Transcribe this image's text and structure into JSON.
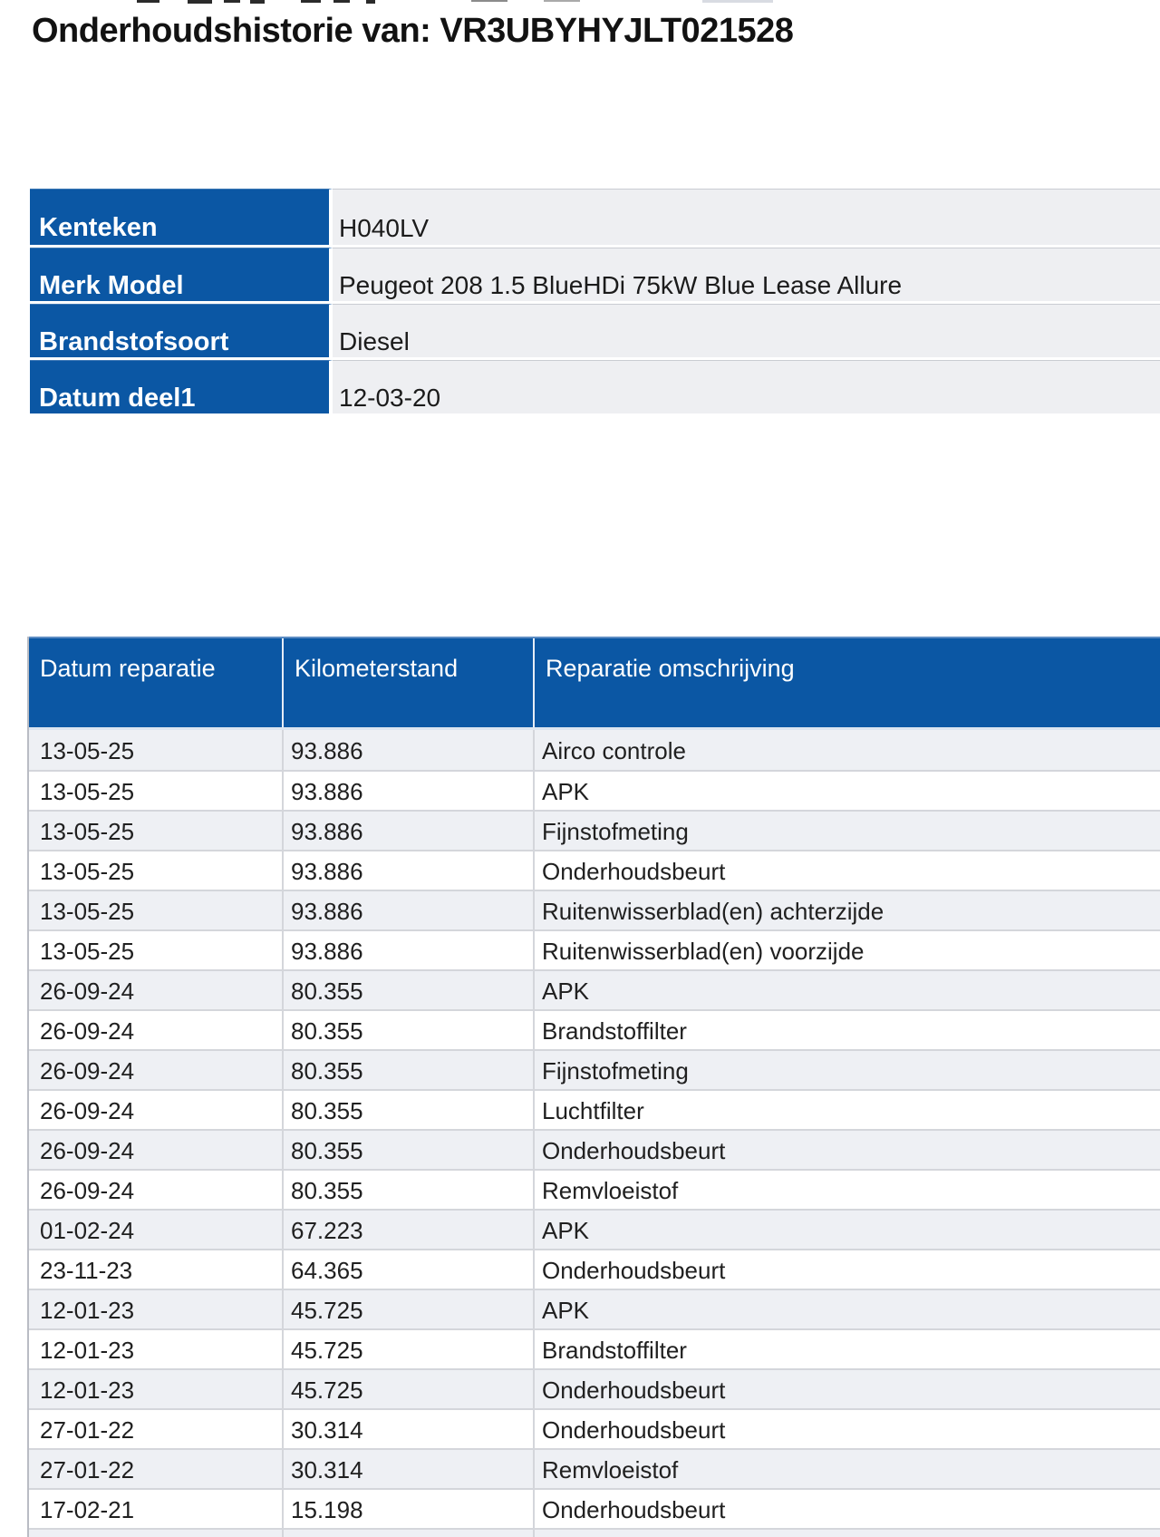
{
  "page": {
    "title": "Onderhoudshistorie van: VR3UBYHYJLT021528"
  },
  "vehicle_info": {
    "rows": [
      {
        "label": "Kenteken",
        "value": "H040LV"
      },
      {
        "label": "Merk Model",
        "value": "Peugeot 208 1.5 BlueHDi 75kW Blue Lease Allure"
      },
      {
        "label": "Brandstofsoort",
        "value": "Diesel"
      },
      {
        "label": "Datum deel1",
        "value": "12-03-20"
      }
    ]
  },
  "maintenance_table": {
    "columns": [
      "Datum reparatie",
      "Kilometerstand",
      "Reparatie omschrijving"
    ],
    "rows": [
      [
        "13-05-25",
        "93.886",
        "Airco controle"
      ],
      [
        "13-05-25",
        "93.886",
        "APK"
      ],
      [
        "13-05-25",
        "93.886",
        "Fijnstofmeting"
      ],
      [
        "13-05-25",
        "93.886",
        "Onderhoudsbeurt"
      ],
      [
        "13-05-25",
        "93.886",
        "Ruitenwisserblad(en) achterzijde"
      ],
      [
        "13-05-25",
        "93.886",
        "Ruitenwisserblad(en) voorzijde"
      ],
      [
        "26-09-24",
        "80.355",
        "APK"
      ],
      [
        "26-09-24",
        "80.355",
        "Brandstoffilter"
      ],
      [
        "26-09-24",
        "80.355",
        "Fijnstofmeting"
      ],
      [
        "26-09-24",
        "80.355",
        "Luchtfilter"
      ],
      [
        "26-09-24",
        "80.355",
        "Onderhoudsbeurt"
      ],
      [
        "26-09-24",
        "80.355",
        "Remvloeistof"
      ],
      [
        "01-02-24",
        "67.223",
        "APK"
      ],
      [
        "23-11-23",
        "64.365",
        "Onderhoudsbeurt"
      ],
      [
        "12-01-23",
        "45.725",
        "APK"
      ],
      [
        "12-01-23",
        "45.725",
        "Brandstoffilter"
      ],
      [
        "12-01-23",
        "45.725",
        "Onderhoudsbeurt"
      ],
      [
        "27-01-22",
        "30.314",
        "Onderhoudsbeurt"
      ],
      [
        "27-01-22",
        "30.314",
        "Remvloeistof"
      ],
      [
        "17-02-21",
        "15.198",
        "Onderhoudsbeurt"
      ]
    ]
  },
  "colors": {
    "header_blue": "#0b57a4",
    "header_blue_highlight": "#3d77b4",
    "row_alt_gray": "#eef0f4",
    "info_value_gray": "#eeeff2",
    "grid_line": "#d4d6db",
    "text": "#202020"
  }
}
